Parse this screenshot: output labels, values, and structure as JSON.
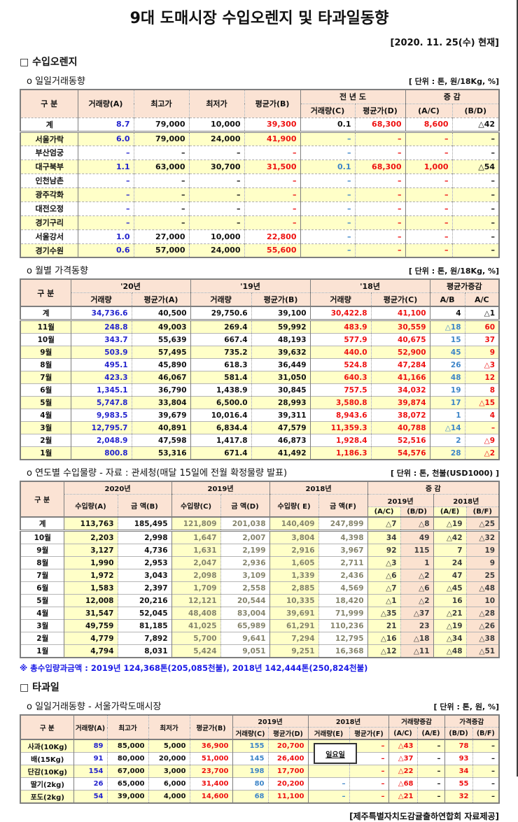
{
  "page": {
    "title": "9대 도매시장 수입오렌지 및 타과일동향",
    "date_note": "[2020. 11. 25(수) 현재]",
    "provider_note": "[제주특별자치도감귤출하연합회 자료제공]"
  },
  "colors": {
    "price_red": "#ee1111",
    "volume_blue": "#2323cd",
    "light_blue": "#3d85c8",
    "gray_value": "#85846c",
    "stripe_yellow": "#ffffc8",
    "header_peach": "#fbe3d4",
    "pink_cell": "#fbe2d0",
    "footnote_blue": "#1a1ae6"
  },
  "orange": {
    "heading": "□ 수입오렌지",
    "daily": {
      "subheading": "o  일일거래동향",
      "unit": "[ 단위 : 톤, 원/18Kg, %]",
      "table": {
        "header": {
          "gubun": "구      분",
          "a": "거래량(A)",
          "high": "최고가",
          "low": "최저가",
          "b": "평균가(B)",
          "prev_year": "전 년 도",
          "c": "거래량(C)",
          "d": "평균가(D)",
          "chg": "증    감",
          "ac": "(A/C)",
          "bd": "(B/D)"
        },
        "rows": [
          {
            "label": "계",
            "values": [
              "8.7",
              "79,000",
              "10,000",
              "39,300",
              "0.1",
              "68,300",
              "8,600",
              "△42"
            ]
          },
          {
            "label": "서울가락",
            "values": [
              "6.0",
              "79,000",
              "24,000",
              "41,900",
              "–",
              "–",
              "–",
              "–"
            ]
          },
          {
            "label": "부산엄궁",
            "values": [
              "–",
              "–",
              "–",
              "–",
              "–",
              "–",
              "–",
              "–"
            ]
          },
          {
            "label": "대구북부",
            "values": [
              "1.1",
              "63,000",
              "30,700",
              "31,500",
              "0.1",
              "68,300",
              "1,000",
              "△54"
            ]
          },
          {
            "label": "인천남촌",
            "values": [
              "–",
              "–",
              "–",
              "–",
              "–",
              "–",
              "–",
              "–"
            ]
          },
          {
            "label": "광주각화",
            "values": [
              "–",
              "–",
              "–",
              "–",
              "–",
              "–",
              "–",
              "–"
            ]
          },
          {
            "label": "대전오정",
            "values": [
              "–",
              "–",
              "–",
              "–",
              "–",
              "–",
              "–",
              "–"
            ]
          },
          {
            "label": "경기구리",
            "values": [
              "–",
              "–",
              "–",
              "–",
              "–",
              "–",
              "–",
              "–"
            ]
          },
          {
            "label": "서울강서",
            "values": [
              "1.0",
              "27,000",
              "10,000",
              "22,800",
              "–",
              "–",
              "–",
              "–"
            ]
          },
          {
            "label": "경기수원",
            "values": [
              "0.6",
              "57,000",
              "24,000",
              "55,600",
              "–",
              "–",
              "–",
              "–"
            ]
          }
        ]
      }
    },
    "monthly": {
      "subheading": "o  월별 가격동향",
      "unit": "[ 단위 : 톤, 원/18Kg, %]",
      "table": {
        "header": {
          "gubun": "구      분",
          "y20": "'20년",
          "y19": "'19년",
          "y18": "'18년",
          "vol": "거래량",
          "pa": "평균가(A)",
          "pb": "평균가(B)",
          "pc": "평균가(C)",
          "chg": "평균가증감",
          "ab": "A/B",
          "ac": "A/C"
        },
        "rows": [
          {
            "label": "계",
            "values": [
              "34,736.6",
              "40,500",
              "29,750.6",
              "39,100",
              "30,422.8",
              "41,100",
              "4",
              "△1"
            ]
          },
          {
            "label": "11월",
            "values": [
              "248.8",
              "49,003",
              "269.4",
              "59,992",
              "483.9",
              "30,559",
              "△18",
              "60"
            ]
          },
          {
            "label": "10월",
            "values": [
              "343.7",
              "55,639",
              "667.4",
              "48,193",
              "577.9",
              "40,675",
              "15",
              "37"
            ]
          },
          {
            "label": "9월",
            "values": [
              "503.9",
              "57,495",
              "735.2",
              "39,632",
              "440.0",
              "52,900",
              "45",
              "9"
            ]
          },
          {
            "label": "8월",
            "values": [
              "495.1",
              "45,890",
              "618.3",
              "36,449",
              "524.8",
              "47,284",
              "26",
              "△3"
            ]
          },
          {
            "label": "7월",
            "values": [
              "423.3",
              "46,067",
              "581.4",
              "31,050",
              "640.3",
              "41,166",
              "48",
              "12"
            ]
          },
          {
            "label": "6월",
            "values": [
              "1,345.1",
              "36,790",
              "1,438.9",
              "30,845",
              "757.5",
              "34,032",
              "19",
              "8"
            ]
          },
          {
            "label": "5월",
            "values": [
              "5,747.8",
              "33,804",
              "6,500.0",
              "28,993",
              "3,580.8",
              "39,874",
              "17",
              "△15"
            ]
          },
          {
            "label": "4월",
            "values": [
              "9,983.5",
              "39,679",
              "10,016.4",
              "39,311",
              "8,943.6",
              "38,072",
              "1",
              "4"
            ]
          },
          {
            "label": "3월",
            "values": [
              "12,795.7",
              "40,891",
              "6,834.4",
              "47,579",
              "11,359.3",
              "40,788",
              "△14",
              "–"
            ]
          },
          {
            "label": "2월",
            "values": [
              "2,048.9",
              "47,598",
              "1,417.8",
              "46,873",
              "1,928.4",
              "52,516",
              "2",
              "△9"
            ]
          },
          {
            "label": "1월",
            "values": [
              "800.8",
              "53,316",
              "671.4",
              "41,492",
              "1,186.3",
              "54,576",
              "28",
              "△2"
            ]
          }
        ]
      }
    },
    "yearly": {
      "subheading": "o  연도별 수입물량 - 자료 : 관세청(매달 15일에 전월 확정물량 발표)",
      "unit": "[ 단위 : 톤, 천불(USD1000) ]",
      "footnote": "※ 총수입량과금액 : 2019년 124,368톤(205,085천불),  2018년 142,444톤(250,824천불)",
      "table": {
        "header": {
          "gubun": "구 분",
          "y2020": "2020년",
          "y2019": "2019년",
          "y2018": "2018년",
          "imp_a": "수입량(A)",
          "amt_b": "금  액(B)",
          "imp_c": "수입량(C)",
          "amt_d": "금  액(D)",
          "imp_e": "수입량( E)",
          "amt_f": "금  액(F)",
          "chg": "증    감",
          "sub2019": "2019년",
          "sub2018": "2018년",
          "ac": "(A/C)",
          "bd": "(B/D)",
          "ae": "(A/E)",
          "bf": "(B/F)"
        },
        "rows": [
          {
            "label": "계",
            "values": [
              "113,763",
              "185,495",
              "121,809",
              "201,038",
              "140,409",
              "247,899",
              "△7",
              "△8",
              "△19",
              "△25"
            ]
          },
          {
            "label": "10월",
            "values": [
              "2,203",
              "2,998",
              "1,647",
              "2,007",
              "3,804",
              "4,398",
              "34",
              "49",
              "△42",
              "△32"
            ]
          },
          {
            "label": "9월",
            "values": [
              "3,127",
              "4,736",
              "1,631",
              "2,199",
              "2,916",
              "3,967",
              "92",
              "115",
              "7",
              "19"
            ]
          },
          {
            "label": "8월",
            "values": [
              "1,990",
              "2,953",
              "2,047",
              "2,936",
              "1,605",
              "2,711",
              "△3",
              "1",
              "24",
              "9"
            ]
          },
          {
            "label": "7월",
            "values": [
              "1,972",
              "3,043",
              "2,098",
              "3,109",
              "1,339",
              "2,436",
              "△6",
              "△2",
              "47",
              "25"
            ]
          },
          {
            "label": "6월",
            "values": [
              "1,583",
              "2,397",
              "1,709",
              "2,558",
              "2,885",
              "4,569",
              "△7",
              "△6",
              "△45",
              "△48"
            ]
          },
          {
            "label": "5월",
            "values": [
              "12,008",
              "20,216",
              "12,121",
              "20,544",
              "10,335",
              "18,420",
              "△1",
              "△2",
              "16",
              "10"
            ]
          },
          {
            "label": "4월",
            "values": [
              "31,547",
              "52,045",
              "48,408",
              "83,004",
              "39,691",
              "71,999",
              "△35",
              "△37",
              "△21",
              "△28"
            ]
          },
          {
            "label": "3월",
            "values": [
              "49,759",
              "81,185",
              "41,025",
              "65,989",
              "61,291",
              "110,236",
              "21",
              "23",
              "△19",
              "△26"
            ]
          },
          {
            "label": "2월",
            "values": [
              "4,779",
              "7,892",
              "5,700",
              "9,641",
              "7,294",
              "12,795",
              "△16",
              "△18",
              "△34",
              "△38"
            ]
          },
          {
            "label": "1월",
            "values": [
              "4,794",
              "8,031",
              "5,424",
              "9,051",
              "9,251",
              "16,368",
              "△12",
              "△11",
              "△48",
              "△51"
            ]
          }
        ]
      }
    }
  },
  "other_fruits": {
    "heading": "□ 타과일",
    "daily": {
      "subheading": "o  일일거래동향 - 서울가락도매시장",
      "unit": "[ 단위 : 톤, 원, %]",
      "overlay_note": "일요일",
      "table": {
        "header": {
          "gubun": "구  분",
          "a": "거래량(A)",
          "high": "최고가",
          "low": "최저가",
          "b": "평균가(B)",
          "y2019": "2019년",
          "c": "거래량(C)",
          "d": "평균가(D)",
          "y2018": "2018년",
          "e": "거래량(E)",
          "f": "평균가(F)",
          "volchg": "거래량증감",
          "prichg": "가격증감",
          "ac": "(A/C)",
          "ae": "(A/E)",
          "bd": "(B/D)",
          "bf": "(B/F)"
        },
        "rows": [
          {
            "label": "사과(10Kg)",
            "values": [
              "89",
              "85,000",
              "5,000",
              "36,900",
              "155",
              "20,700",
              "–",
              "–",
              "△43",
              "–",
              "78",
              "–"
            ]
          },
          {
            "label": "배(15Kg)",
            "values": [
              "91",
              "80,000",
              "20,000",
              "51,000",
              "145",
              "26,400",
              "",
              "–",
              "△37",
              "–",
              "93",
              "–"
            ]
          },
          {
            "label": "단감(10Kg)",
            "values": [
              "154",
              "67,000",
              "3,000",
              "23,700",
              "198",
              "17,700",
              "",
              "–",
              "△22",
              "–",
              "34",
              "–"
            ]
          },
          {
            "label": "딸기(2kg)",
            "values": [
              "26",
              "65,000",
              "6,000",
              "31,400",
              "80",
              "20,200",
              "–",
              "–",
              "△68",
              "–",
              "55",
              "–"
            ]
          },
          {
            "label": "포도(2kg)",
            "values": [
              "54",
              "39,000",
              "4,000",
              "14,600",
              "68",
              "11,100",
              "–",
              "–",
              "△21",
              "–",
              "32",
              "–"
            ]
          }
        ]
      }
    }
  }
}
